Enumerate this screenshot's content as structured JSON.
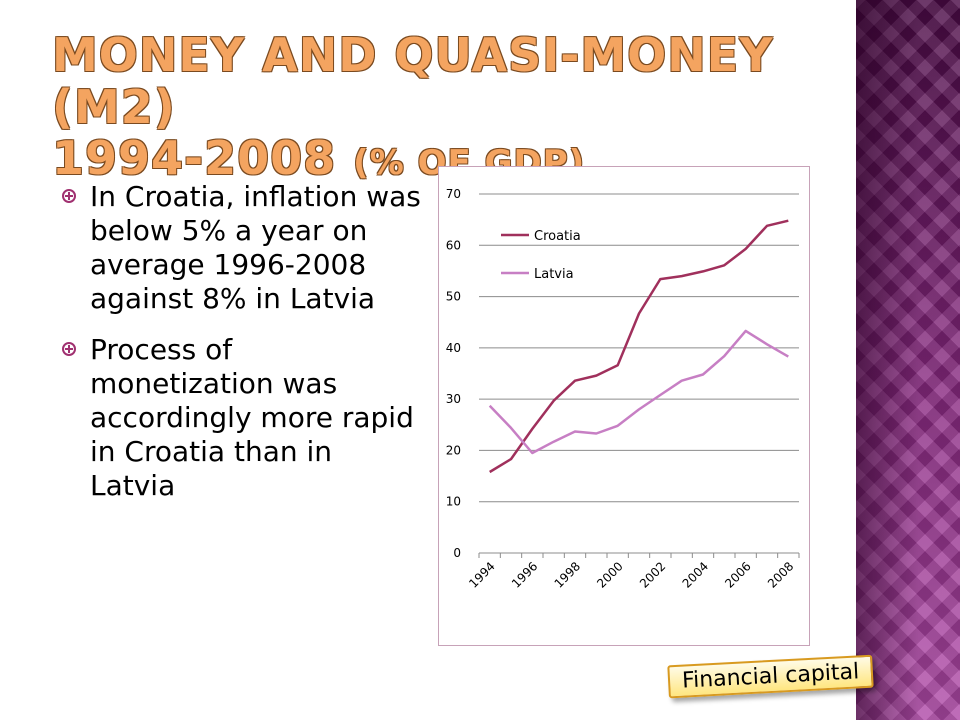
{
  "slide": {
    "title_line1": "Money and Quasi-money (M2)",
    "title_line2_main": "1994-2008",
    "title_line2_small": "(% of GDP)",
    "bullets": [
      "In Croatia, inflation was below 5% a year on average 1996-2008 against 8% in Latvia",
      "Process of monetization was accordingly more rapid in Croatia than in Latvia"
    ],
    "badge": "Financial capital"
  },
  "colors": {
    "title": "#f4a460",
    "croatia": "#a0305c",
    "latvia": "#c77fc4",
    "band": "#5a1050"
  },
  "chart_data": {
    "type": "line",
    "x": [
      1994,
      1995,
      1996,
      1997,
      1998,
      1999,
      2000,
      2001,
      2002,
      2003,
      2004,
      2005,
      2006,
      2007,
      2008
    ],
    "x_tick_labels": [
      "1994",
      "1996",
      "1998",
      "2000",
      "2002",
      "2004",
      "2006",
      "2008"
    ],
    "y_tick_labels": [
      "0",
      "10",
      "20",
      "30",
      "40",
      "50",
      "60",
      "70"
    ],
    "ylim": [
      0,
      70
    ],
    "grid": "horizontal",
    "legend": "top-left",
    "series": [
      {
        "name": "Croatia",
        "color": "#a0305c",
        "values": [
          15.8,
          18.3,
          24.2,
          29.7,
          33.6,
          34.6,
          36.6,
          46.7,
          53.4,
          54.0,
          54.9,
          56.1,
          59.3,
          63.8,
          64.8
        ]
      },
      {
        "name": "Latvia",
        "color": "#c77fc4",
        "values": [
          28.7,
          24.4,
          19.5,
          21.7,
          23.7,
          23.3,
          24.8,
          28.0,
          30.8,
          33.6,
          34.8,
          38.4,
          43.3,
          40.7,
          38.3
        ]
      }
    ]
  }
}
